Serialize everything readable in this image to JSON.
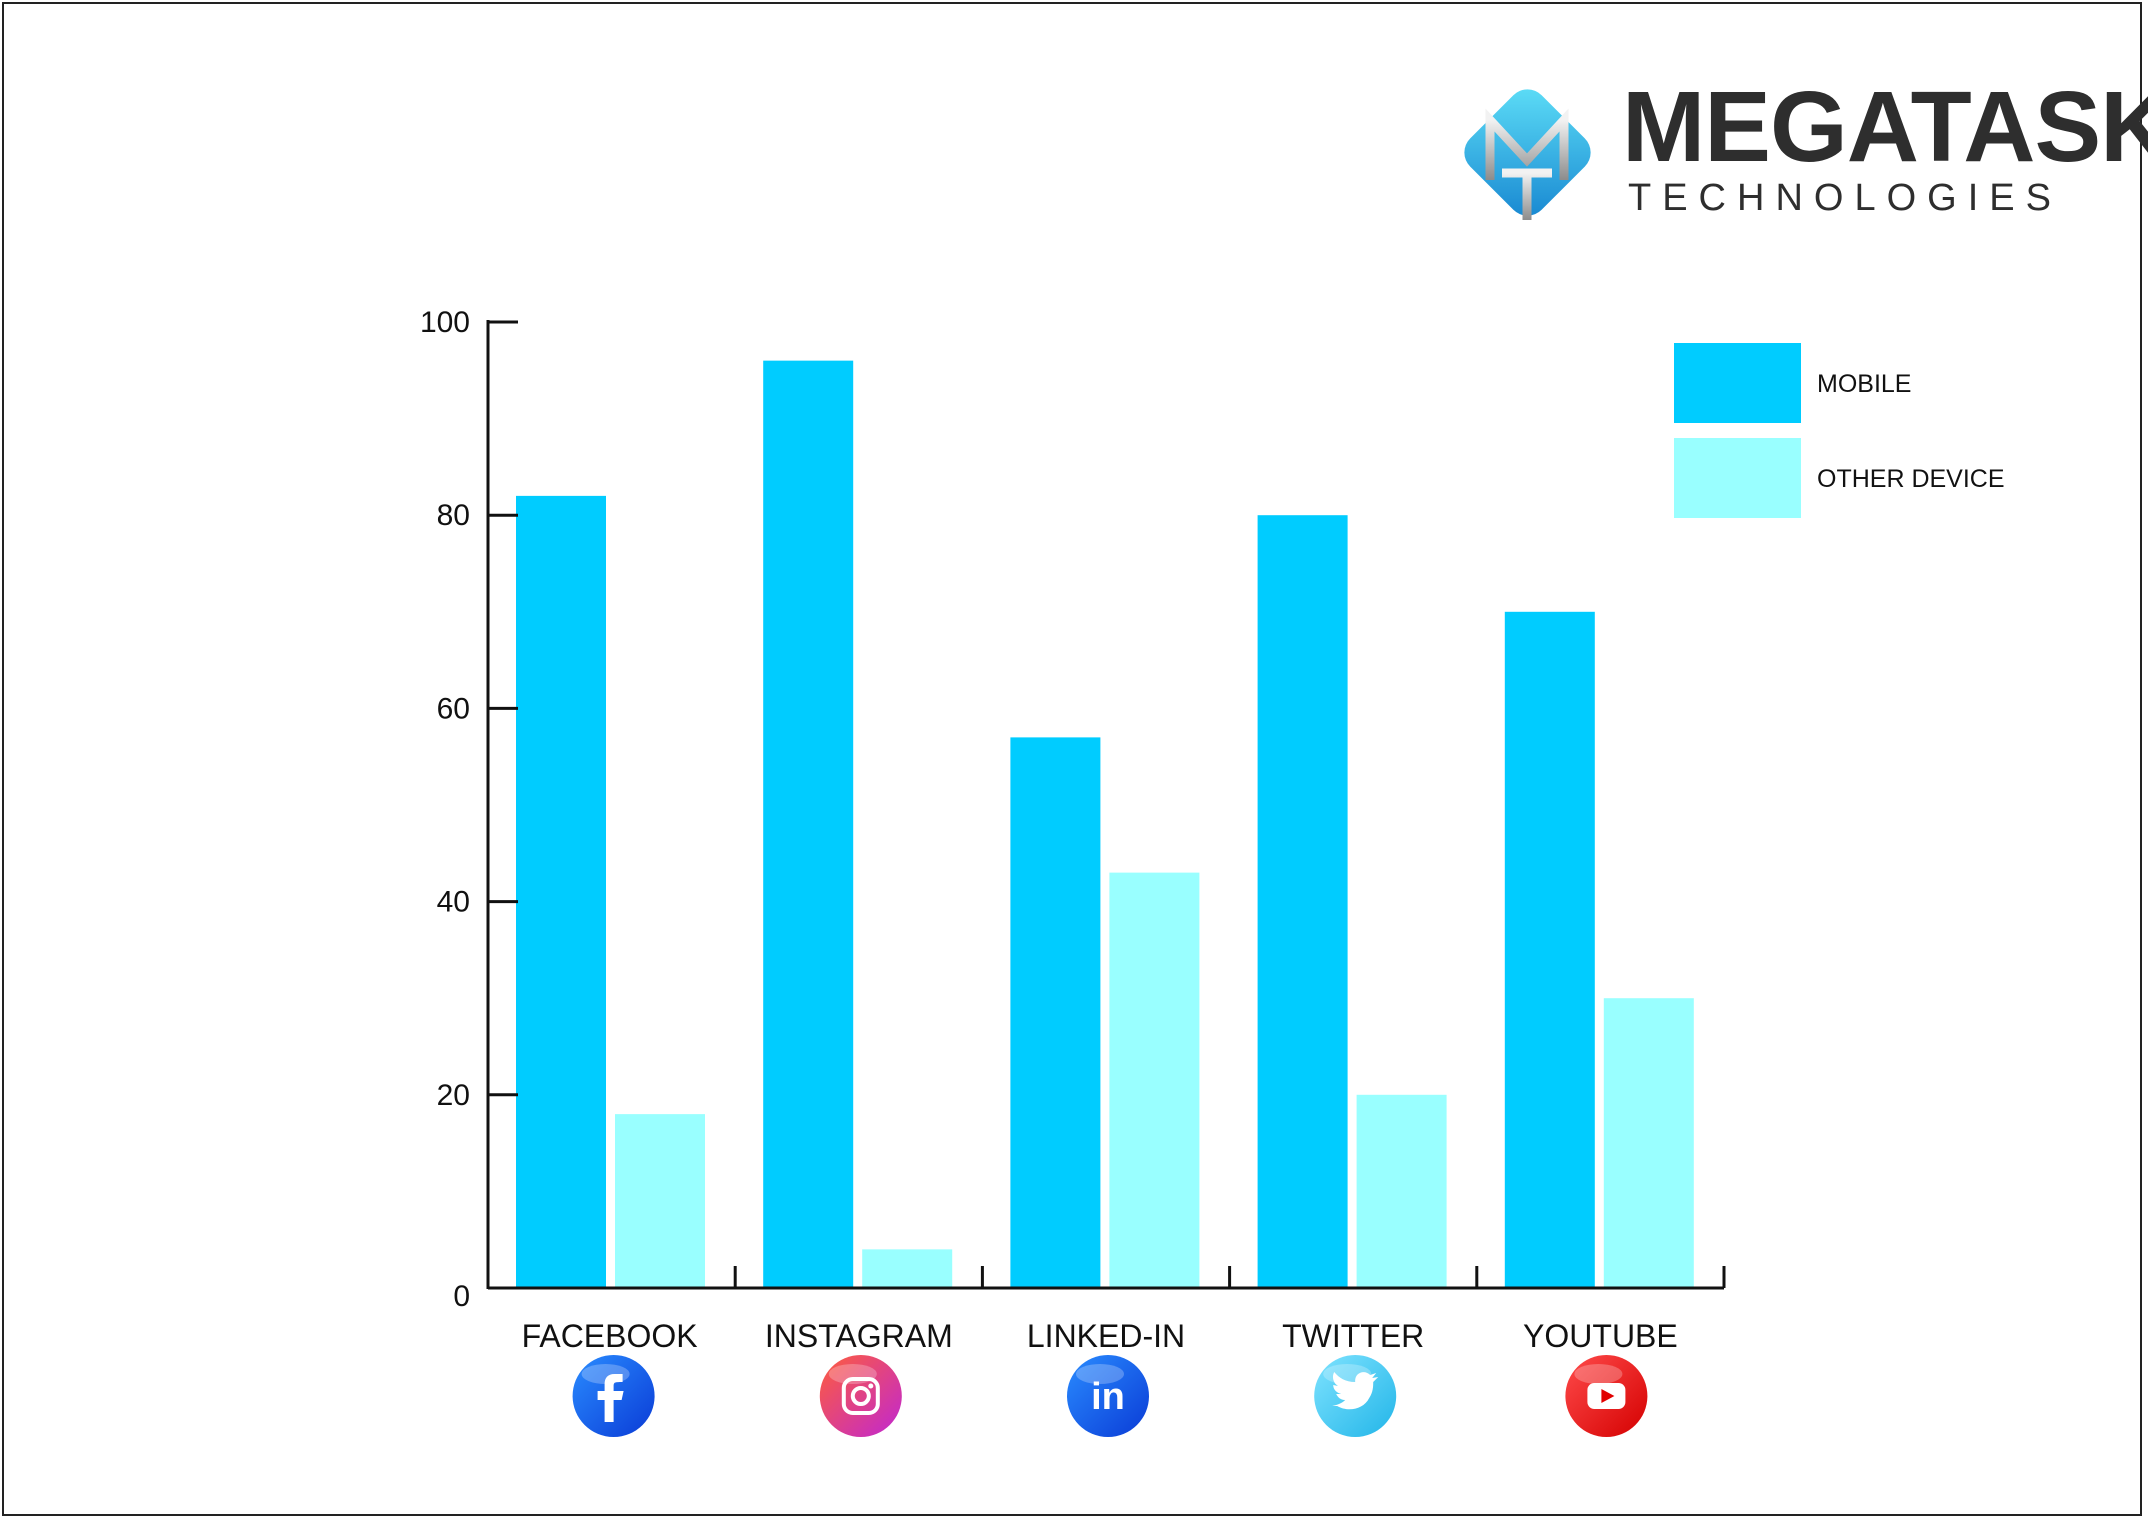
{
  "brand": {
    "name": "MEGATASK",
    "tagline": "TECHNOLOGIES",
    "monogram": "MT",
    "colors": {
      "mark_light": "#4fd3f5",
      "mark_dark": "#1a8fd6",
      "text": "#2e2e2e"
    }
  },
  "chart_data": {
    "type": "bar",
    "categories": [
      "FACEBOOK",
      "INSTAGRAM",
      "LINKED-IN",
      "TWITTER",
      "YOUTUBE"
    ],
    "category_icons": [
      "facebook-icon",
      "instagram-icon",
      "linkedin-icon",
      "twitter-icon",
      "youtube-icon"
    ],
    "series": [
      {
        "name": "MOBILE",
        "color": "#00ccff",
        "values": [
          82,
          96,
          57,
          80,
          70
        ]
      },
      {
        "name": "OTHER DEVICE",
        "color": "#99ffff",
        "values": [
          18,
          4,
          43,
          20,
          30
        ]
      }
    ],
    "title": "",
    "xlabel": "",
    "ylabel": "",
    "ylim": [
      0,
      100
    ],
    "yticks": [
      0,
      20,
      40,
      60,
      80,
      100
    ],
    "grid": false,
    "legend_position": "top-right"
  }
}
